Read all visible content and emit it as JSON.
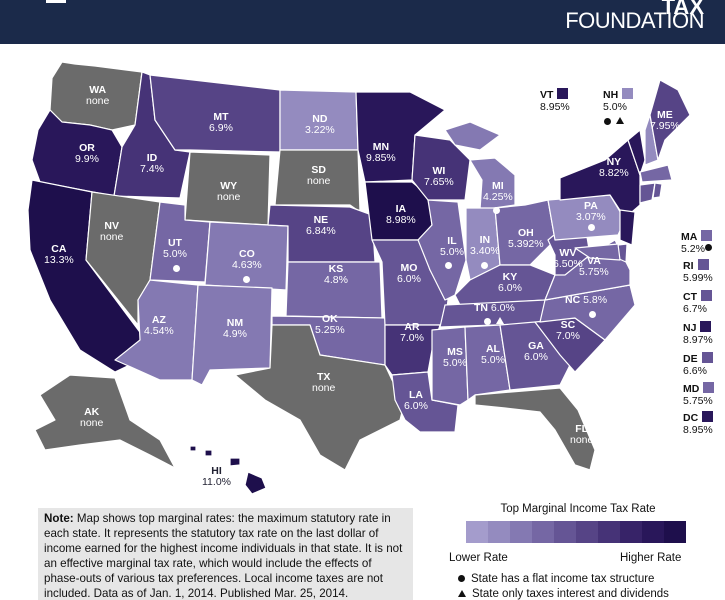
{
  "brand": {
    "line1": "TAX",
    "line2": "FOUNDATION"
  },
  "colors": {
    "none": "#6b6b6b",
    "scale": [
      "#a49ccc",
      "#948bbf",
      "#8479b2",
      "#7567a4",
      "#655595",
      "#564486",
      "#463377",
      "#372368",
      "#29175a",
      "#1e0f4c"
    ]
  },
  "states": {
    "WA": {
      "abbr": "WA",
      "rate": "none"
    },
    "OR": {
      "abbr": "OR",
      "rate": "9.9%"
    },
    "CA": {
      "abbr": "CA",
      "rate": "13.3%"
    },
    "ID": {
      "abbr": "ID",
      "rate": "7.4%"
    },
    "NV": {
      "abbr": "NV",
      "rate": "none"
    },
    "MT": {
      "abbr": "MT",
      "rate": "6.9%"
    },
    "WY": {
      "abbr": "WY",
      "rate": "none"
    },
    "UT": {
      "abbr": "UT",
      "rate": "5.0%"
    },
    "AZ": {
      "abbr": "AZ",
      "rate": "4.54%"
    },
    "CO": {
      "abbr": "CO",
      "rate": "4.63%"
    },
    "NM": {
      "abbr": "NM",
      "rate": "4.9%"
    },
    "ND": {
      "abbr": "ND",
      "rate": "3.22%"
    },
    "SD": {
      "abbr": "SD",
      "rate": "none"
    },
    "NE": {
      "abbr": "NE",
      "rate": "6.84%"
    },
    "KS": {
      "abbr": "KS",
      "rate": "4.8%"
    },
    "OK": {
      "abbr": "OK",
      "rate": "5.25%"
    },
    "TX": {
      "abbr": "TX",
      "rate": "none"
    },
    "MN": {
      "abbr": "MN",
      "rate": "9.85%"
    },
    "IA": {
      "abbr": "IA",
      "rate": "8.98%"
    },
    "MO": {
      "abbr": "MO",
      "rate": "6.0%"
    },
    "AR": {
      "abbr": "AR",
      "rate": "7.0%"
    },
    "LA": {
      "abbr": "LA",
      "rate": "6.0%"
    },
    "WI": {
      "abbr": "WI",
      "rate": "7.65%"
    },
    "IL": {
      "abbr": "IL",
      "rate": "5.0%"
    },
    "MI": {
      "abbr": "MI",
      "rate": "4.25%"
    },
    "IN": {
      "abbr": "IN",
      "rate": "3.40%"
    },
    "OH": {
      "abbr": "OH",
      "rate": "5.392%"
    },
    "KY": {
      "abbr": "KY",
      "rate": "6.0%"
    },
    "TN": {
      "abbr": "TN",
      "rate": "6.0%"
    },
    "MS": {
      "abbr": "MS",
      "rate": "5.0%"
    },
    "AL": {
      "abbr": "AL",
      "rate": "5.0%"
    },
    "GA": {
      "abbr": "GA",
      "rate": "6.0%"
    },
    "FL": {
      "abbr": "FL",
      "rate": "none"
    },
    "SC": {
      "abbr": "SC",
      "rate": "7.0%"
    },
    "NC": {
      "abbr": "NC",
      "rate": "5.8%"
    },
    "VA": {
      "abbr": "VA",
      "rate": "5.75%"
    },
    "WV": {
      "abbr": "WV",
      "rate": "6.50%"
    },
    "PA": {
      "abbr": "PA",
      "rate": "3.07%"
    },
    "NY": {
      "abbr": "NY",
      "rate": "8.82%"
    },
    "ME": {
      "abbr": "ME",
      "rate": "7.95%"
    },
    "AK": {
      "abbr": "AK",
      "rate": "none"
    },
    "HI": {
      "abbr": "HI",
      "rate": "11.0%"
    },
    "VT": {
      "abbr": "VT",
      "rate": "8.95%"
    },
    "NH": {
      "abbr": "NH",
      "rate": "5.0%"
    },
    "MA": {
      "abbr": "MA",
      "rate": "5.2%"
    },
    "RI": {
      "abbr": "RI",
      "rate": "5.99%"
    },
    "CT": {
      "abbr": "CT",
      "rate": "6.7%"
    },
    "NJ": {
      "abbr": "NJ",
      "rate": "8.97%"
    },
    "DE": {
      "abbr": "DE",
      "rate": "6.6%"
    },
    "MD": {
      "abbr": "MD",
      "rate": "5.75%"
    },
    "DC": {
      "abbr": "DC",
      "rate": "8.95%"
    }
  },
  "note": {
    "label": "Note:",
    "text": "Map shows top marginal rates: the maximum statutory rate in each state. It represents the statutory tax rate on the last dollar of income earned for the highest income individuals in that state. It is not an effective marginal tax rate, which would include the effects of phase-outs of various tax preferences. Local income taxes are not included. Data as of Jan. 1, 2014. Published Mar. 25, 2014."
  },
  "legend": {
    "title": "Top Marginal Income Tax Rate",
    "low": "Lower Rate",
    "high": "Higher Rate",
    "flat": "State has a flat income tax structure",
    "interest": "State only taxes interest and dividends"
  }
}
